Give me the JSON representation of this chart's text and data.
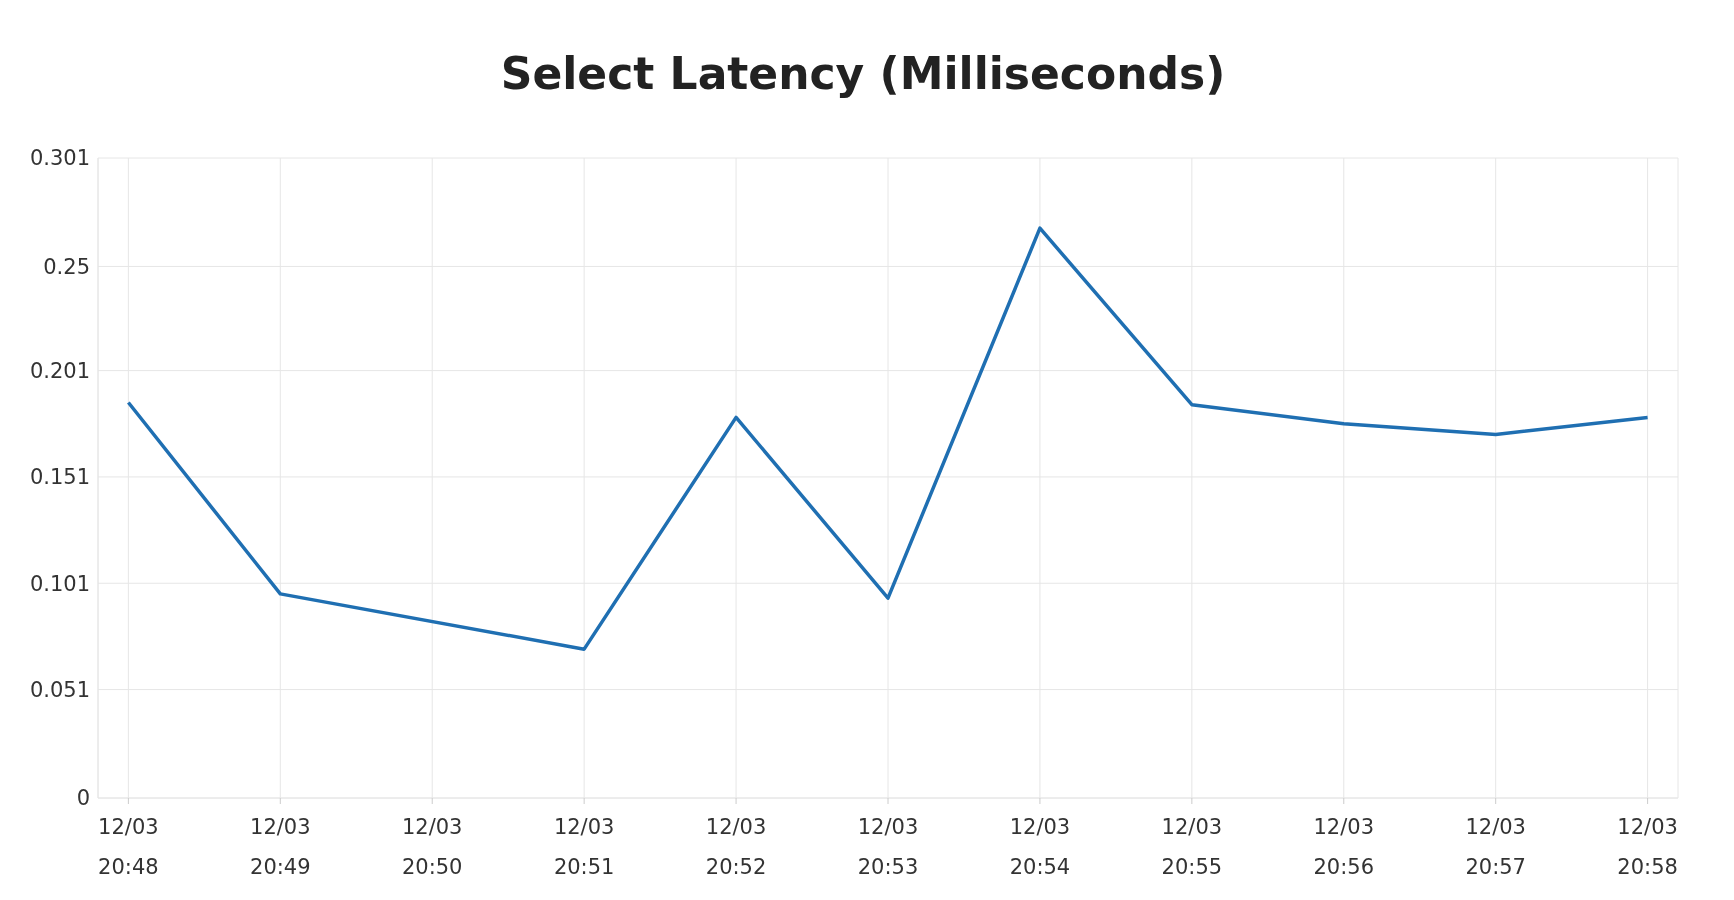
{
  "chart_data": {
    "type": "line",
    "title": "Select Latency (Milliseconds)",
    "categories": [
      "12/03 20:48",
      "12/03 20:49",
      "12/03 20:50",
      "12/03 20:51",
      "12/03 20:52",
      "12/03 20:53",
      "12/03 20:54",
      "12/03 20:55",
      "12/03 20:56",
      "12/03 20:57",
      "12/03 20:58"
    ],
    "series": [
      {
        "color": "#1f6fb2",
        "values": [
          0.186,
          0.096,
          null,
          0.07,
          0.179,
          0.094,
          0.268,
          0.185,
          0.176,
          0.171,
          0.179
        ]
      }
    ],
    "ylim": [
      0,
      0.301
    ],
    "yticks": [
      0,
      0.051,
      0.101,
      0.151,
      0.201,
      0.25,
      0.301
    ],
    "grid": true,
    "marker": "none",
    "line_style": "solid"
  }
}
